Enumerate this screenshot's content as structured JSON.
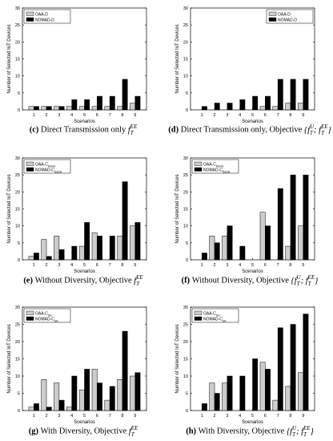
{
  "chart_data": [
    {
      "type": "bar",
      "caption": {
        "label": "(c)",
        "text": "Direct Transmission only",
        "objective": "f_T^EE"
      },
      "xlabel": "Scenarios",
      "ylabel": "Number of Selected IoT Devices",
      "ylim": [
        0,
        30
      ],
      "yticks": [
        0,
        5,
        10,
        15,
        20,
        25,
        30
      ],
      "legend_position": "top-left",
      "categories": [
        "1",
        "2",
        "3",
        "4",
        "5",
        "6",
        "7",
        "8",
        "9"
      ],
      "series": [
        {
          "name": "OAA-D",
          "color": "#cccccc",
          "values": [
            1,
            1,
            1,
            1,
            1,
            1,
            1,
            1,
            2
          ]
        },
        {
          "name": "NOMAD-D",
          "color": "#000000",
          "values": [
            1,
            1,
            1,
            3,
            3,
            4,
            4,
            9,
            4
          ]
        }
      ]
    },
    {
      "type": "bar",
      "caption": {
        "label": "(d)",
        "text": "Direct Transmission only, Objective",
        "objective": "{f_T^U; f_T^EE}"
      },
      "xlabel": "Scenarios",
      "ylabel": "Number of Selected IoT Devices",
      "ylim": [
        0,
        30
      ],
      "yticks": [
        0,
        5,
        10,
        15,
        20,
        25,
        30
      ],
      "legend_position": "top-right",
      "categories": [
        "1",
        "2",
        "3",
        "4",
        "5",
        "6",
        "7",
        "8",
        "9"
      ],
      "series": [
        {
          "name": "OAA-D",
          "color": "#cccccc",
          "values": [
            0,
            0,
            0,
            0,
            0,
            1,
            1,
            2,
            2
          ]
        },
        {
          "name": "NOMAD-D",
          "color": "#000000",
          "values": [
            1,
            2,
            2,
            3,
            4,
            4,
            9,
            9,
            9
          ]
        }
      ]
    },
    {
      "type": "bar",
      "caption": {
        "label": "(e)",
        "text": "Without Diversity, Objective",
        "objective": "f_T^EE"
      },
      "xlabel": "Scenarios",
      "ylabel": "Number of Selected IoT Devices",
      "ylim": [
        0,
        30
      ],
      "yticks": [
        0,
        5,
        10,
        15,
        20,
        25,
        30
      ],
      "legend_position": "top-left",
      "categories": [
        "1",
        "2",
        "3",
        "4",
        "5",
        "6",
        "7",
        "8",
        "9"
      ],
      "series": [
        {
          "name": "OAA-C_NoDiv",
          "color": "#cccccc",
          "values": [
            1,
            6,
            7,
            0,
            4,
            8,
            0,
            7,
            10
          ]
        },
        {
          "name": "NOMAD-C_NoDiv",
          "color": "#000000",
          "values": [
            2,
            1,
            3,
            4,
            11,
            7,
            7,
            23,
            11
          ]
        }
      ]
    },
    {
      "type": "bar",
      "caption": {
        "label": "(f)",
        "text": "Without Diversity, Objective",
        "objective": "{f_T^U; f_T^EE}"
      },
      "xlabel": "Scenarios",
      "ylabel": "Number of Selected IoT Devices",
      "ylim": [
        0,
        30
      ],
      "yticks": [
        0,
        5,
        10,
        15,
        20,
        25,
        30
      ],
      "legend_position": "top-left",
      "categories": [
        "1",
        "2",
        "3",
        "4",
        "5",
        "6",
        "7",
        "8",
        "9"
      ],
      "series": [
        {
          "name": "OAA-C_NoDiv",
          "color": "#cccccc",
          "values": [
            0,
            7,
            7,
            0,
            0,
            14,
            0,
            4,
            10
          ]
        },
        {
          "name": "NOMAD-C_NoDiv",
          "color": "#000000",
          "values": [
            2,
            5,
            10,
            4,
            0,
            10,
            21,
            25,
            25
          ]
        }
      ]
    },
    {
      "type": "bar",
      "caption": {
        "label": "(g)",
        "text": "With Diversity, Objective",
        "objective": "f_T^EE"
      },
      "xlabel": "Scenarios",
      "ylabel": "Number of Selected IoT Devices",
      "ylim": [
        0,
        30
      ],
      "yticks": [
        0,
        5,
        10,
        15,
        20,
        25,
        30
      ],
      "legend_position": "top-left",
      "categories": [
        "1",
        "2",
        "3",
        "4",
        "5",
        "6",
        "7",
        "8",
        "9"
      ],
      "series": [
        {
          "name": "OAA-C_Div",
          "color": "#cccccc",
          "values": [
            1,
            9,
            8,
            1,
            6,
            12,
            3,
            9,
            10
          ]
        },
        {
          "name": "NOMAD-C_Div",
          "color": "#000000",
          "values": [
            2,
            1,
            3,
            10,
            12,
            8,
            7,
            23,
            11
          ]
        }
      ]
    },
    {
      "type": "bar",
      "caption": {
        "label": "(h)",
        "text": "With Diversity, Objective",
        "objective": "{f_T^U; f_T^EE}"
      },
      "xlabel": "Scenarios",
      "ylabel": "Number of Selected IoT Devices",
      "ylim": [
        0,
        30
      ],
      "yticks": [
        0,
        5,
        10,
        15,
        20,
        25,
        30
      ],
      "legend_position": "top-left",
      "categories": [
        "1",
        "2",
        "3",
        "4",
        "5",
        "6",
        "7",
        "8",
        "9"
      ],
      "series": [
        {
          "name": "OAA-C_Div",
          "color": "#cccccc",
          "values": [
            0,
            8,
            8,
            0,
            0,
            14,
            3,
            7,
            11
          ]
        },
        {
          "name": "NOMAD-C_Div",
          "color": "#000000",
          "values": [
            2,
            5,
            10,
            10,
            15,
            12,
            24,
            25,
            28
          ]
        }
      ]
    }
  ]
}
